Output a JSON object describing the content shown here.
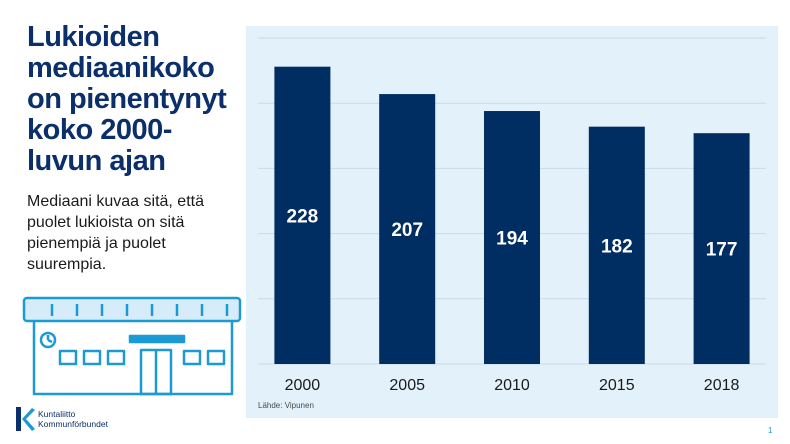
{
  "slide": {
    "title": "Lukioiden mediaanikoko on pienentynyt koko 2000-luvun ajan",
    "subtitle": "Mediaani kuvaa sitä, että puolet lukioista on sitä pienempiä ja puolet suurempia.",
    "source": "Lähde: Vipunen",
    "logo_line1": "Kuntaliitto",
    "logo_line2": "Kommunförbundet",
    "page_number": "1"
  },
  "colors": {
    "bar": "#002d62",
    "panel": "#e3f1fa",
    "title": "#0b2f6b",
    "accent": "#1b9ad6"
  },
  "icons": [
    "school-building-icon",
    "kuntaliitto-logo-icon"
  ],
  "chart_data": {
    "type": "bar",
    "categories": [
      "2000",
      "2005",
      "2010",
      "2015",
      "2018"
    ],
    "values": [
      228,
      207,
      194,
      182,
      177
    ],
    "title": "",
    "xlabel": "",
    "ylabel": "",
    "ylim": [
      0,
      250
    ],
    "grid": true,
    "legend": "none",
    "data_labels": true
  }
}
